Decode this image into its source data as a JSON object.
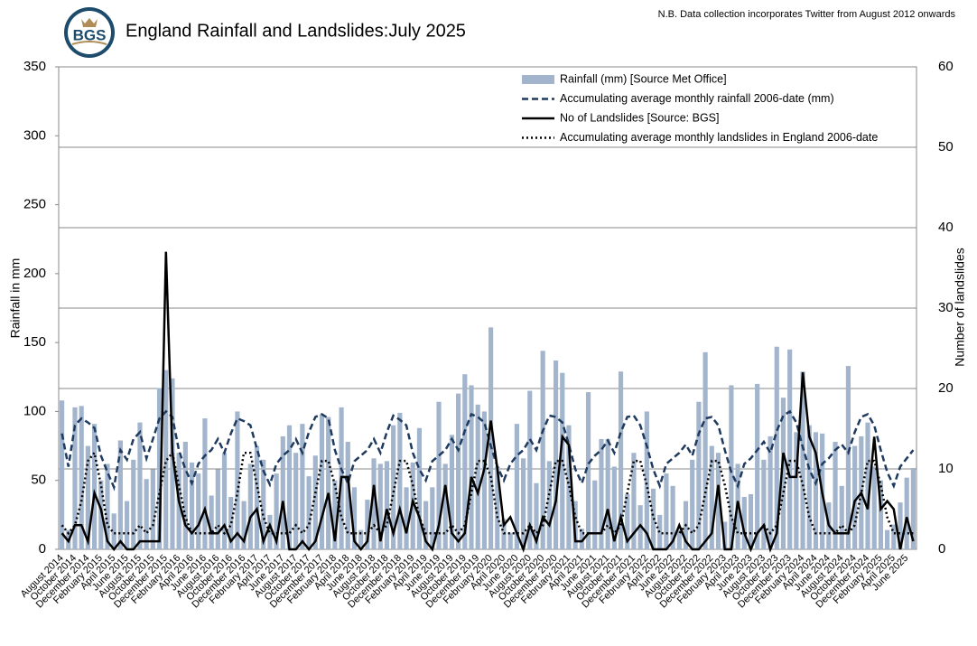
{
  "chart_data": {
    "type": "combo",
    "logo": "BGS",
    "title": "England Rainfall and Landslides:July 2025",
    "note": "N.B. Data collection incorporates Twitter from August 2012 onwards",
    "y_label": "Rainfall in mm",
    "y2_label": "Number of landslides",
    "ylim": [
      0,
      350
    ],
    "yticks": [
      0,
      50,
      100,
      150,
      200,
      250,
      300,
      350
    ],
    "y2lim": [
      0,
      60
    ],
    "y2ticks": [
      0,
      10,
      20,
      30,
      40,
      50,
      60
    ],
    "grid": true,
    "legend": "top-right",
    "categories": [
      "August 2014",
      null,
      "October 2014",
      null,
      "December 2014",
      null,
      "February 2015",
      null,
      "April 2015",
      null,
      "June 2015",
      null,
      "August 2015",
      null,
      "October 2015",
      null,
      "December 2015",
      null,
      "February 2016",
      null,
      "April 2016",
      null,
      "June 2016",
      null,
      "August 2016",
      null,
      "October 2016",
      null,
      "December 2016",
      null,
      "February 2017",
      null,
      "April 2017",
      null,
      "June 2017",
      null,
      "August 2017",
      null,
      "October 2017",
      null,
      "December 2017",
      null,
      "February 2018",
      null,
      "April 2018",
      null,
      "June 2018",
      null,
      "August 2018",
      null,
      "October 2018",
      null,
      "December 2018",
      null,
      "February 2019",
      null,
      "April 2019",
      null,
      "June 2019",
      null,
      "August 2019",
      null,
      "October 2019",
      null,
      "December 2019",
      null,
      "February 2020",
      null,
      "April 2020",
      null,
      "June 2020",
      null,
      "August 2020",
      null,
      "October 2020",
      null,
      "December 2020",
      null,
      "February 2021",
      null,
      "April 2021",
      null,
      "June 2021",
      null,
      "August 2021",
      null,
      "October 2021",
      null,
      "December 2021",
      null,
      "February 2022",
      null,
      "April 2022",
      null,
      "June 2022",
      null,
      "August 2022",
      null,
      "October 2022",
      null,
      "December 2022",
      null,
      "February 2023",
      null,
      "April 2023",
      null,
      "June 2023",
      null,
      "August 2023",
      null,
      "October 2023",
      null,
      "December 2023",
      null,
      "February 2024",
      null,
      "April 2024",
      null,
      "June 2024",
      null,
      "August 2024",
      null,
      "October 2024",
      null,
      "December 2024",
      null,
      "February 2025",
      null,
      "April 2025",
      null,
      "June 2025",
      null
    ],
    "series": [
      {
        "name": "Rainfall (mm) [Source Met Office]",
        "style": "bar",
        "axis": "y",
        "color": "#a3b5cc",
        "values": [
          108,
          14,
          103,
          104,
          75,
          91,
          50,
          62,
          26,
          79,
          35,
          65,
          92,
          51,
          58,
          117,
          130,
          124,
          70,
          78,
          63,
          55,
          95,
          39,
          58,
          70,
          38,
          100,
          35,
          62,
          75,
          65,
          25,
          55,
          82,
          90,
          70,
          91,
          53,
          68,
          98,
          96,
          50,
          103,
          78,
          45,
          14,
          36,
          66,
          62,
          64,
          90,
          99,
          45,
          63,
          88,
          35,
          45,
          107,
          62,
          83,
          113,
          127,
          119,
          105,
          100,
          161,
          60,
          22,
          12,
          91,
          66,
          115,
          48,
          144,
          64,
          137,
          128,
          90,
          35,
          15,
          114,
          50,
          80,
          80,
          60,
          129,
          40,
          70,
          32,
          100,
          44,
          25,
          55,
          46,
          14,
          35,
          65,
          107,
          143,
          75,
          70,
          20,
          119,
          62,
          38,
          40,
          120,
          65,
          82,
          147,
          110,
          145,
          85,
          129,
          90,
          85,
          84,
          34,
          78,
          46,
          133,
          75,
          82,
          92,
          60,
          50,
          14,
          18,
          34,
          52,
          59
        ]
      },
      {
        "name": "Accumulating average monthly rainfall 2006-date (mm)",
        "style": "dashed",
        "axis": "y",
        "color": "#1f3a5f",
        "values": [
          84,
          60,
          90,
          95,
          92,
          88,
          68,
          56,
          45,
          72,
          65,
          80,
          85,
          66,
          80,
          95,
          100,
          96,
          72,
          58,
          48,
          62,
          68,
          72,
          80,
          70,
          84,
          95,
          93,
          90,
          73,
          57,
          47,
          62,
          68,
          72,
          80,
          70,
          85,
          96,
          98,
          95,
          72,
          58,
          48,
          64,
          68,
          72,
          80,
          70,
          85,
          97,
          94,
          90,
          70,
          58,
          50,
          64,
          68,
          72,
          80,
          72,
          86,
          98,
          96,
          92,
          75,
          60,
          50,
          62,
          68,
          72,
          80,
          72,
          86,
          97,
          96,
          92,
          76,
          58,
          48,
          62,
          68,
          72,
          79,
          70,
          85,
          96,
          97,
          90,
          75,
          58,
          46,
          62,
          66,
          70,
          76,
          68,
          84,
          95,
          96,
          90,
          72,
          56,
          46,
          62,
          66,
          72,
          78,
          70,
          86,
          97,
          100,
          92,
          74,
          58,
          48,
          62,
          66,
          72,
          76,
          70,
          85,
          96,
          98,
          90,
          72,
          56,
          46,
          60,
          66,
          72
        ]
      },
      {
        "name": "No of Landslides [Source: BGS]",
        "style": "solid",
        "axis": "y2",
        "color": "#000000",
        "values": [
          2,
          1,
          3,
          3,
          1,
          7,
          5,
          1,
          0,
          1,
          0,
          0,
          1,
          1,
          1,
          1,
          37,
          12,
          6,
          3,
          2,
          3,
          5,
          2,
          2,
          3,
          1,
          2,
          1,
          4,
          5,
          1,
          3,
          1,
          6,
          0,
          0,
          1,
          0,
          1,
          4,
          7,
          1,
          9,
          9,
          1,
          0,
          1,
          8,
          1,
          5,
          2,
          5,
          2,
          6,
          4,
          1,
          0,
          3,
          8,
          2,
          1,
          2,
          9,
          7,
          10,
          16,
          10,
          3,
          4,
          2,
          0,
          3,
          1,
          4,
          3,
          6,
          14,
          13,
          1,
          1,
          2,
          2,
          2,
          5,
          1,
          4,
          1,
          2,
          3,
          2,
          0,
          0,
          0,
          1,
          3,
          1,
          0,
          0,
          1,
          2,
          8,
          0,
          0,
          6,
          2,
          0,
          2,
          3,
          0,
          2,
          12,
          9,
          9,
          22,
          14,
          12,
          7,
          3,
          2,
          2,
          2,
          6,
          7,
          5,
          14,
          5,
          6,
          5,
          0,
          4,
          1
        ]
      },
      {
        "name": "Accumulating average monthly landslides in England 2006-date",
        "style": "dotted",
        "axis": "y2",
        "color": "#000000",
        "values": [
          3,
          2,
          3,
          6,
          11,
          12,
          8,
          3,
          2,
          2,
          2,
          2,
          3,
          2,
          3,
          7,
          11,
          12,
          8,
          4,
          2,
          2,
          2,
          2,
          3,
          2,
          3,
          7,
          12,
          12,
          8,
          4,
          2,
          2,
          2,
          2,
          3,
          2,
          3,
          7,
          11,
          11,
          8,
          4,
          2,
          2,
          2,
          2,
          3,
          2,
          3,
          7,
          11,
          11,
          8,
          4,
          2,
          2,
          2,
          2,
          3,
          2,
          3,
          7,
          11,
          11,
          9,
          4,
          2,
          2,
          2,
          2,
          3,
          2,
          3,
          7,
          11,
          11,
          8,
          4,
          2,
          2,
          2,
          2,
          3,
          2,
          3,
          7,
          11,
          11,
          8,
          4,
          2,
          2,
          2,
          2,
          3,
          2,
          3,
          7,
          11,
          11,
          8,
          4,
          2,
          2,
          2,
          2,
          3,
          2,
          3,
          7,
          11,
          11,
          8,
          4,
          2,
          2,
          2,
          2,
          3,
          2,
          3,
          7,
          11,
          11,
          8,
          4,
          2,
          2,
          2,
          2
        ]
      }
    ]
  }
}
